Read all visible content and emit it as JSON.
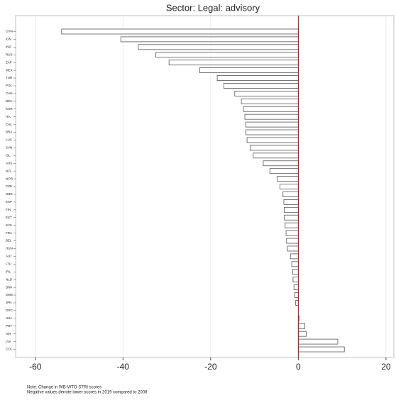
{
  "chart_data": {
    "type": "hbar",
    "title": "Sector: Legal: advisory",
    "categories": [
      "CHN",
      "IDN",
      "IND",
      "RUS",
      "ZAF",
      "MEX",
      "TUR",
      "POL",
      "CAN",
      "DEU",
      "KOR",
      "ITA",
      "CHL",
      "BRA",
      "LUX",
      "SVN",
      "ISL",
      "AUS",
      "NZL",
      "NOR",
      "CZE",
      "GBR",
      "ESP",
      "FIN",
      "EST",
      "SVK",
      "FRA",
      "BEL",
      "HUN",
      "AUT",
      "LTU",
      "IRL",
      "NLD",
      "DNK",
      "SWE",
      "JPN",
      "GRC",
      "USA",
      "PRT",
      "ISR",
      "LVA",
      "COL"
    ],
    "values": [
      -54,
      -40.5,
      -36.5,
      -32.5,
      -29.5,
      -22.5,
      -18.5,
      -17,
      -14.5,
      -13,
      -12.5,
      -12.2,
      -12,
      -12,
      -11.7,
      -11,
      -10.3,
      -8,
      -6.5,
      -4.8,
      -4.2,
      -3.5,
      -3.3,
      -3.2,
      -3.2,
      -3,
      -2.8,
      -2.7,
      -2.5,
      -1.8,
      -1.5,
      -1.3,
      -1.2,
      -1,
      -0.8,
      -0.6,
      0,
      0.2,
      1.5,
      1.8,
      9,
      10.5
    ],
    "color": "#ffffff",
    "edge_color": "#555555",
    "zero_line_color": "#cc0000",
    "xlim": [
      -64.5,
      21.8
    ],
    "xticks": [
      -60,
      -40,
      -20,
      0,
      20
    ],
    "grid": true,
    "notes": [
      "Note: Change in WB-WTO STRI scores",
      "Negative values denote lower scores in 2019 compared to 2008"
    ]
  }
}
